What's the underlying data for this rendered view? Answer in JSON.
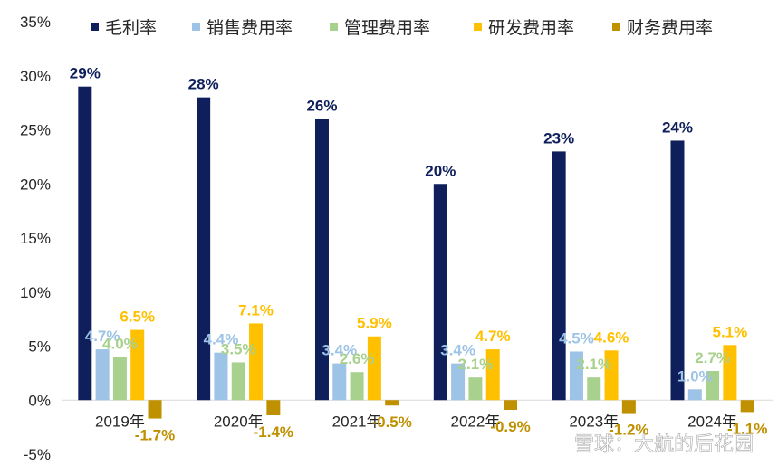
{
  "chart_data": {
    "type": "bar",
    "categories": [
      "2019年",
      "2020年",
      "2021年",
      "2022年",
      "2023年",
      "2024年"
    ],
    "series": [
      {
        "name": "毛利率",
        "color": "#0e1f5b",
        "values": [
          29,
          28,
          26,
          20,
          23,
          24
        ],
        "labels": [
          "29%",
          "28%",
          "26%",
          "20%",
          "23%",
          "24%"
        ]
      },
      {
        "name": "销售费用率",
        "color": "#9dc3e6",
        "values": [
          4.7,
          4.4,
          3.4,
          3.4,
          4.5,
          1.0
        ],
        "labels": [
          "4.7%",
          "4.4%",
          "3.4%",
          "3.4%",
          "4.5%",
          "1.0%"
        ]
      },
      {
        "name": "管理费用率",
        "color": "#a9d18e",
        "values": [
          4.0,
          3.5,
          2.6,
          2.1,
          2.1,
          2.7
        ],
        "labels": [
          "4.0%",
          "3.5%",
          "2.6%",
          "2.1%",
          "2.1%",
          "2.7%"
        ]
      },
      {
        "name": "研发费用率",
        "color": "#ffc000",
        "values": [
          6.5,
          7.1,
          5.9,
          4.7,
          4.6,
          5.1
        ],
        "labels": [
          "6.5%",
          "7.1%",
          "5.9%",
          "4.7%",
          "4.6%",
          "5.1%"
        ]
      },
      {
        "name": "财务费用率",
        "color": "#bf9000",
        "values": [
          -1.7,
          -1.4,
          -0.5,
          -0.9,
          -1.2,
          -1.1
        ],
        "labels": [
          "-1.7%",
          "-1.4%",
          "-0.5%",
          "-0.9%",
          "-1.2%",
          "-1.1%"
        ]
      }
    ],
    "ylim": [
      -5,
      35
    ],
    "yticks": [
      "-5%",
      "0%",
      "5%",
      "10%",
      "15%",
      "20%",
      "25%",
      "30%",
      "35%"
    ],
    "ytick_values": [
      -5,
      0,
      5,
      10,
      15,
      20,
      25,
      30,
      35
    ],
    "legend_position": "top",
    "grid": false
  },
  "watermark": "雪球：大航的后花园"
}
